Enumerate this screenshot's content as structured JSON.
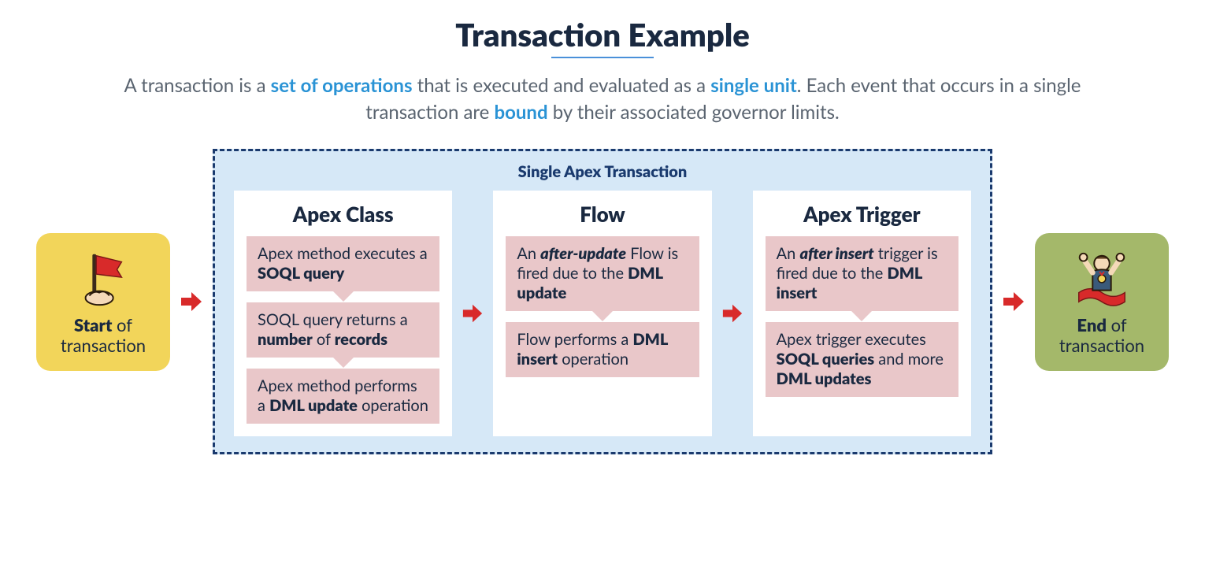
{
  "title": "Transaction Example",
  "subtitle": {
    "p1": "A transaction is a ",
    "hl1": "set of operations",
    "p2": " that is executed and evaluated as a ",
    "hl2": "single unit",
    "p3": ". Each event that occurs in a single transaction are ",
    "hl3": "bound",
    "p4": " by their associated governor limits."
  },
  "start": {
    "bold": "Start",
    "rest": " of transaction"
  },
  "end": {
    "bold": "End",
    "rest": " of transaction"
  },
  "transaction_title": "Single Apex Transaction",
  "colors": {
    "title": "#1a2940",
    "underline": "#4a90d9",
    "subtitle_text": "#5a6470",
    "highlight": "#2a93d5",
    "start_bg": "#f2d55a",
    "end_bg": "#a4b86a",
    "tx_border": "#1a3a6e",
    "tx_bg": "#d6e8f7",
    "col_bg": "#ffffff",
    "step_bg": "#e9c7c9",
    "arrow": "#d82a2a"
  },
  "columns": [
    {
      "title": "Apex Class",
      "steps": [
        {
          "segments": [
            {
              "t": "Apex method executes a "
            },
            {
              "t": "SOQL query",
              "cls": "b"
            }
          ]
        },
        {
          "segments": [
            {
              "t": "SOQL query returns a "
            },
            {
              "t": "number",
              "cls": "b"
            },
            {
              "t": " of "
            },
            {
              "t": "records",
              "cls": "b"
            }
          ]
        },
        {
          "segments": [
            {
              "t": "Apex method performs a "
            },
            {
              "t": "DML update",
              "cls": "b"
            },
            {
              "t": " operation"
            }
          ]
        }
      ]
    },
    {
      "title": "Flow",
      "steps": [
        {
          "segments": [
            {
              "t": "An "
            },
            {
              "t": "after-update",
              "cls": "bi"
            },
            {
              "t": " Flow is fired due to the "
            },
            {
              "t": "DML update",
              "cls": "b"
            }
          ]
        },
        {
          "segments": [
            {
              "t": "Flow performs a "
            },
            {
              "t": "DML insert",
              "cls": "b"
            },
            {
              "t": " operation"
            }
          ]
        }
      ]
    },
    {
      "title": "Apex Trigger",
      "steps": [
        {
          "segments": [
            {
              "t": "An "
            },
            {
              "t": "after insert",
              "cls": "bi"
            },
            {
              "t": " trigger is fired due to the "
            },
            {
              "t": "DML insert",
              "cls": "b"
            }
          ]
        },
        {
          "segments": [
            {
              "t": "Apex trigger executes "
            },
            {
              "t": "SOQL queries",
              "cls": "b"
            },
            {
              "t": " and more "
            },
            {
              "t": "DML updates",
              "cls": "b"
            }
          ]
        }
      ]
    }
  ]
}
